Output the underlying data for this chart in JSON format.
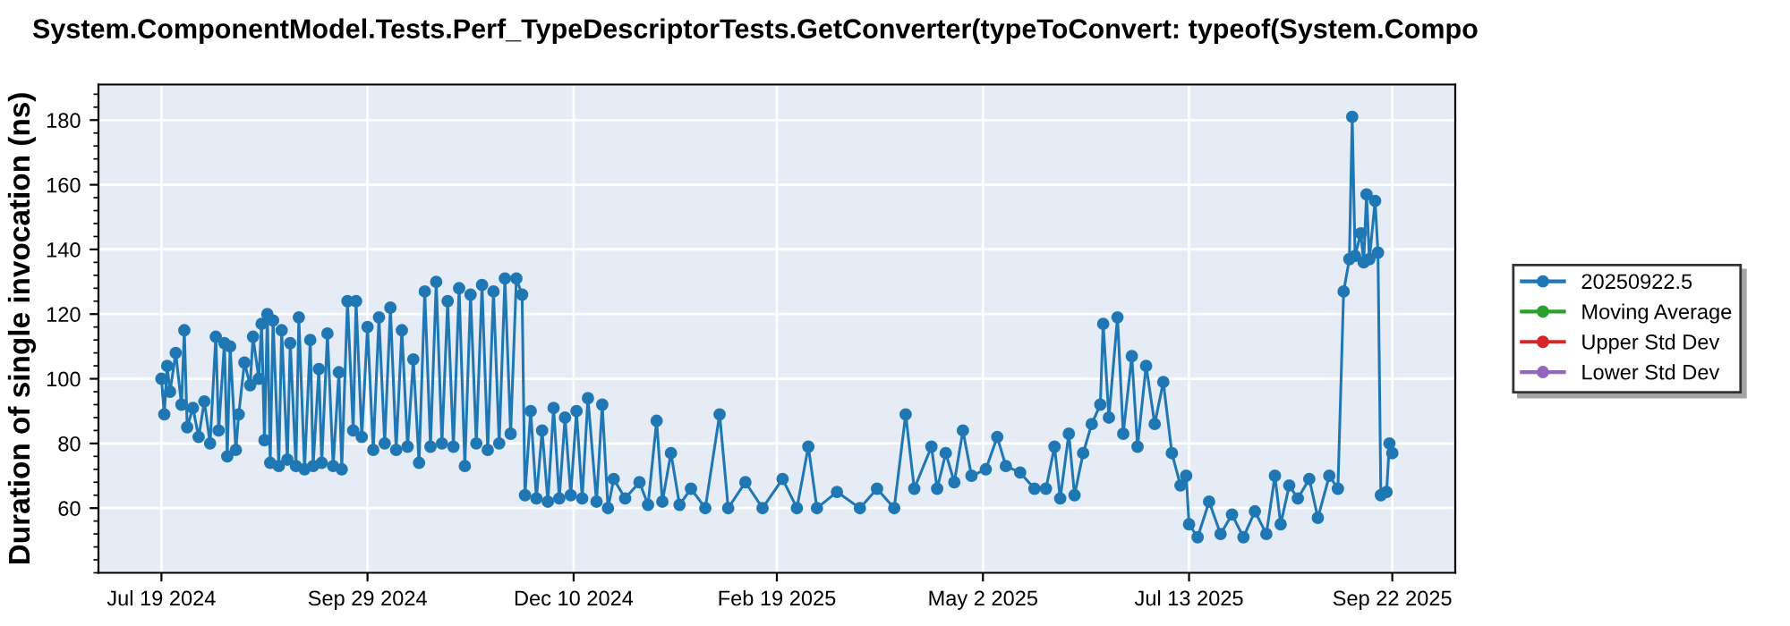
{
  "chart_data": {
    "type": "line",
    "title": "System.ComponentModel.Tests.Perf_TypeDescriptorTests.GetConverter(typeToConvert: typeof(System.Compo",
    "ylabel": "Duration of single invocation (ns)",
    "xlim": [
      "2024-06-27",
      "2025-10-14"
    ],
    "xticks": [
      {
        "value": "2024-07-19",
        "label": "Jul 19 2024"
      },
      {
        "value": "2024-09-29",
        "label": "Sep 29 2024"
      },
      {
        "value": "2024-12-10",
        "label": "Dec 10 2024"
      },
      {
        "value": "2025-02-19",
        "label": "Feb 19 2025"
      },
      {
        "value": "2025-05-02",
        "label": "May 2 2025"
      },
      {
        "value": "2025-07-13",
        "label": "Jul 13 2025"
      },
      {
        "value": "2025-09-22",
        "label": "Sep 22 2025"
      }
    ],
    "ylim": [
      40,
      191
    ],
    "yticks": [
      60,
      80,
      100,
      120,
      140,
      160,
      180
    ],
    "grid": true,
    "legend": "right",
    "marker": "circle",
    "line_style": "solid",
    "series": [
      {
        "name": "20250922.5",
        "color": "#1f77b4",
        "x": [
          "2024-07-19",
          "2024-07-20",
          "2024-07-21",
          "2024-07-22",
          "2024-07-24",
          "2024-07-26",
          "2024-07-27",
          "2024-07-28",
          "2024-07-30",
          "2024-08-01",
          "2024-08-03",
          "2024-08-05",
          "2024-08-07",
          "2024-08-08",
          "2024-08-10",
          "2024-08-11",
          "2024-08-12",
          "2024-08-14",
          "2024-08-15",
          "2024-08-17",
          "2024-08-19",
          "2024-08-20",
          "2024-08-22",
          "2024-08-23",
          "2024-08-24",
          "2024-08-25",
          "2024-08-26",
          "2024-08-27",
          "2024-08-29",
          "2024-08-30",
          "2024-09-01",
          "2024-09-02",
          "2024-09-04",
          "2024-09-05",
          "2024-09-07",
          "2024-09-09",
          "2024-09-10",
          "2024-09-12",
          "2024-09-13",
          "2024-09-15",
          "2024-09-17",
          "2024-09-19",
          "2024-09-20",
          "2024-09-22",
          "2024-09-24",
          "2024-09-25",
          "2024-09-27",
          "2024-09-29",
          "2024-10-01",
          "2024-10-03",
          "2024-10-05",
          "2024-10-07",
          "2024-10-09",
          "2024-10-11",
          "2024-10-13",
          "2024-10-15",
          "2024-10-17",
          "2024-10-19",
          "2024-10-21",
          "2024-10-23",
          "2024-10-25",
          "2024-10-27",
          "2024-10-29",
          "2024-10-31",
          "2024-11-02",
          "2024-11-04",
          "2024-11-06",
          "2024-11-08",
          "2024-11-10",
          "2024-11-12",
          "2024-11-14",
          "2024-11-16",
          "2024-11-18",
          "2024-11-20",
          "2024-11-22",
          "2024-11-23",
          "2024-11-25",
          "2024-11-27",
          "2024-11-29",
          "2024-12-01",
          "2024-12-03",
          "2024-12-05",
          "2024-12-07",
          "2024-12-09",
          "2024-12-11",
          "2024-12-13",
          "2024-12-15",
          "2024-12-18",
          "2024-12-20",
          "2024-12-22",
          "2024-12-24",
          "2024-12-28",
          "2025-01-02",
          "2025-01-05",
          "2025-01-08",
          "2025-01-10",
          "2025-01-13",
          "2025-01-16",
          "2025-01-20",
          "2025-01-25",
          "2025-01-30",
          "2025-02-02",
          "2025-02-08",
          "2025-02-14",
          "2025-02-21",
          "2025-02-26",
          "2025-03-02",
          "2025-03-05",
          "2025-03-12",
          "2025-03-20",
          "2025-03-26",
          "2025-04-01",
          "2025-04-05",
          "2025-04-08",
          "2025-04-14",
          "2025-04-16",
          "2025-04-19",
          "2025-04-22",
          "2025-04-25",
          "2025-04-28",
          "2025-05-03",
          "2025-05-07",
          "2025-05-10",
          "2025-05-15",
          "2025-05-20",
          "2025-05-24",
          "2025-05-27",
          "2025-05-29",
          "2025-06-01",
          "2025-06-03",
          "2025-06-06",
          "2025-06-09",
          "2025-06-12",
          "2025-06-13",
          "2025-06-15",
          "2025-06-18",
          "2025-06-20",
          "2025-06-23",
          "2025-06-25",
          "2025-06-28",
          "2025-07-01",
          "2025-07-04",
          "2025-07-07",
          "2025-07-10",
          "2025-07-12",
          "2025-07-13",
          "2025-07-16",
          "2025-07-20",
          "2025-07-24",
          "2025-07-28",
          "2025-08-01",
          "2025-08-05",
          "2025-08-09",
          "2025-08-12",
          "2025-08-14",
          "2025-08-17",
          "2025-08-20",
          "2025-08-24",
          "2025-08-27",
          "2025-08-31",
          "2025-09-03",
          "2025-09-05",
          "2025-09-07",
          "2025-09-08",
          "2025-09-09",
          "2025-09-11",
          "2025-09-12",
          "2025-09-13",
          "2025-09-14",
          "2025-09-16",
          "2025-09-17",
          "2025-09-18",
          "2025-09-20",
          "2025-09-21",
          "2025-09-22"
        ],
        "values": [
          100,
          89,
          104,
          96,
          108,
          92,
          115,
          85,
          91,
          82,
          93,
          80,
          113,
          84,
          111,
          76,
          110,
          78,
          89,
          105,
          98,
          113,
          100,
          117,
          81,
          120,
          74,
          118,
          73,
          115,
          75,
          111,
          73,
          119,
          72,
          112,
          73,
          103,
          74,
          114,
          73,
          102,
          72,
          124,
          84,
          124,
          82,
          116,
          78,
          119,
          80,
          122,
          78,
          115,
          79,
          106,
          74,
          127,
          79,
          130,
          80,
          124,
          79,
          128,
          73,
          126,
          80,
          129,
          78,
          127,
          80,
          131,
          83,
          131,
          126,
          64,
          90,
          63,
          84,
          62,
          91,
          63,
          88,
          64,
          90,
          63,
          94,
          62,
          92,
          60,
          69,
          63,
          68,
          61,
          87,
          62,
          77,
          61,
          66,
          60,
          89,
          60,
          68,
          60,
          69,
          60,
          79,
          60,
          65,
          60,
          66,
          60,
          89,
          66,
          79,
          66,
          77,
          68,
          84,
          70,
          72,
          82,
          73,
          71,
          66,
          66,
          79,
          63,
          83,
          64,
          77,
          86,
          92,
          117,
          88,
          119,
          83,
          107,
          79,
          104,
          86,
          99,
          77,
          67,
          70,
          55,
          51,
          62,
          52,
          58,
          51,
          59,
          52,
          70,
          55,
          67,
          63,
          69,
          57,
          70,
          66,
          127,
          137,
          181,
          138,
          145,
          136,
          157,
          137,
          155,
          139,
          64,
          65,
          80,
          77
        ]
      },
      {
        "name": "Moving Average",
        "color": "#2ca02c"
      },
      {
        "name": "Upper Std Dev",
        "color": "#d62728"
      },
      {
        "name": "Lower Std Dev",
        "color": "#9467bd"
      }
    ]
  }
}
